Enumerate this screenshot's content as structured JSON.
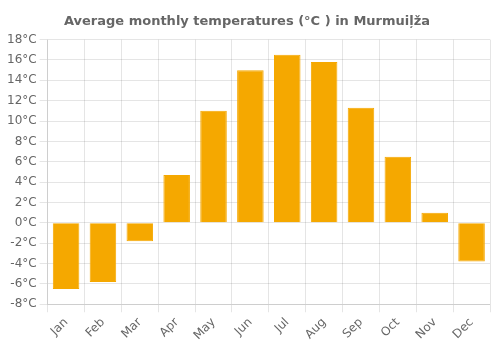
{
  "chart_data": {
    "type": "bar",
    "title": "Average monthly temperatures (°C ) in Murmuiļža",
    "categories": [
      "Jan",
      "Feb",
      "Mar",
      "Apr",
      "May",
      "Jun",
      "Jul",
      "Aug",
      "Sep",
      "Oct",
      "Nov",
      "Dec"
    ],
    "values": [
      -6.5,
      -5.8,
      -1.8,
      4.7,
      11.0,
      15.0,
      16.5,
      15.8,
      11.3,
      6.5,
      1.0,
      -3.8
    ],
    "color": "#F5A800",
    "ylim": [
      -8,
      18
    ],
    "yticks": [
      {
        "value": -8,
        "label": "-8°C"
      },
      {
        "value": -6,
        "label": "-6°C"
      },
      {
        "value": -4,
        "label": "-4°C"
      },
      {
        "value": -2,
        "label": "-2°C"
      },
      {
        "value": 0,
        "label": "0°C"
      },
      {
        "value": 2,
        "label": "2°C"
      },
      {
        "value": 4,
        "label": "4°C"
      },
      {
        "value": 6,
        "label": "6°C"
      },
      {
        "value": 8,
        "label": "8°C"
      },
      {
        "value": 10,
        "label": "10°C"
      },
      {
        "value": 12,
        "label": "12°C"
      },
      {
        "value": 14,
        "label": "14°C"
      },
      {
        "value": 16,
        "label": "16°C"
      },
      {
        "value": 18,
        "label": "18°C"
      }
    ],
    "grid": true
  }
}
